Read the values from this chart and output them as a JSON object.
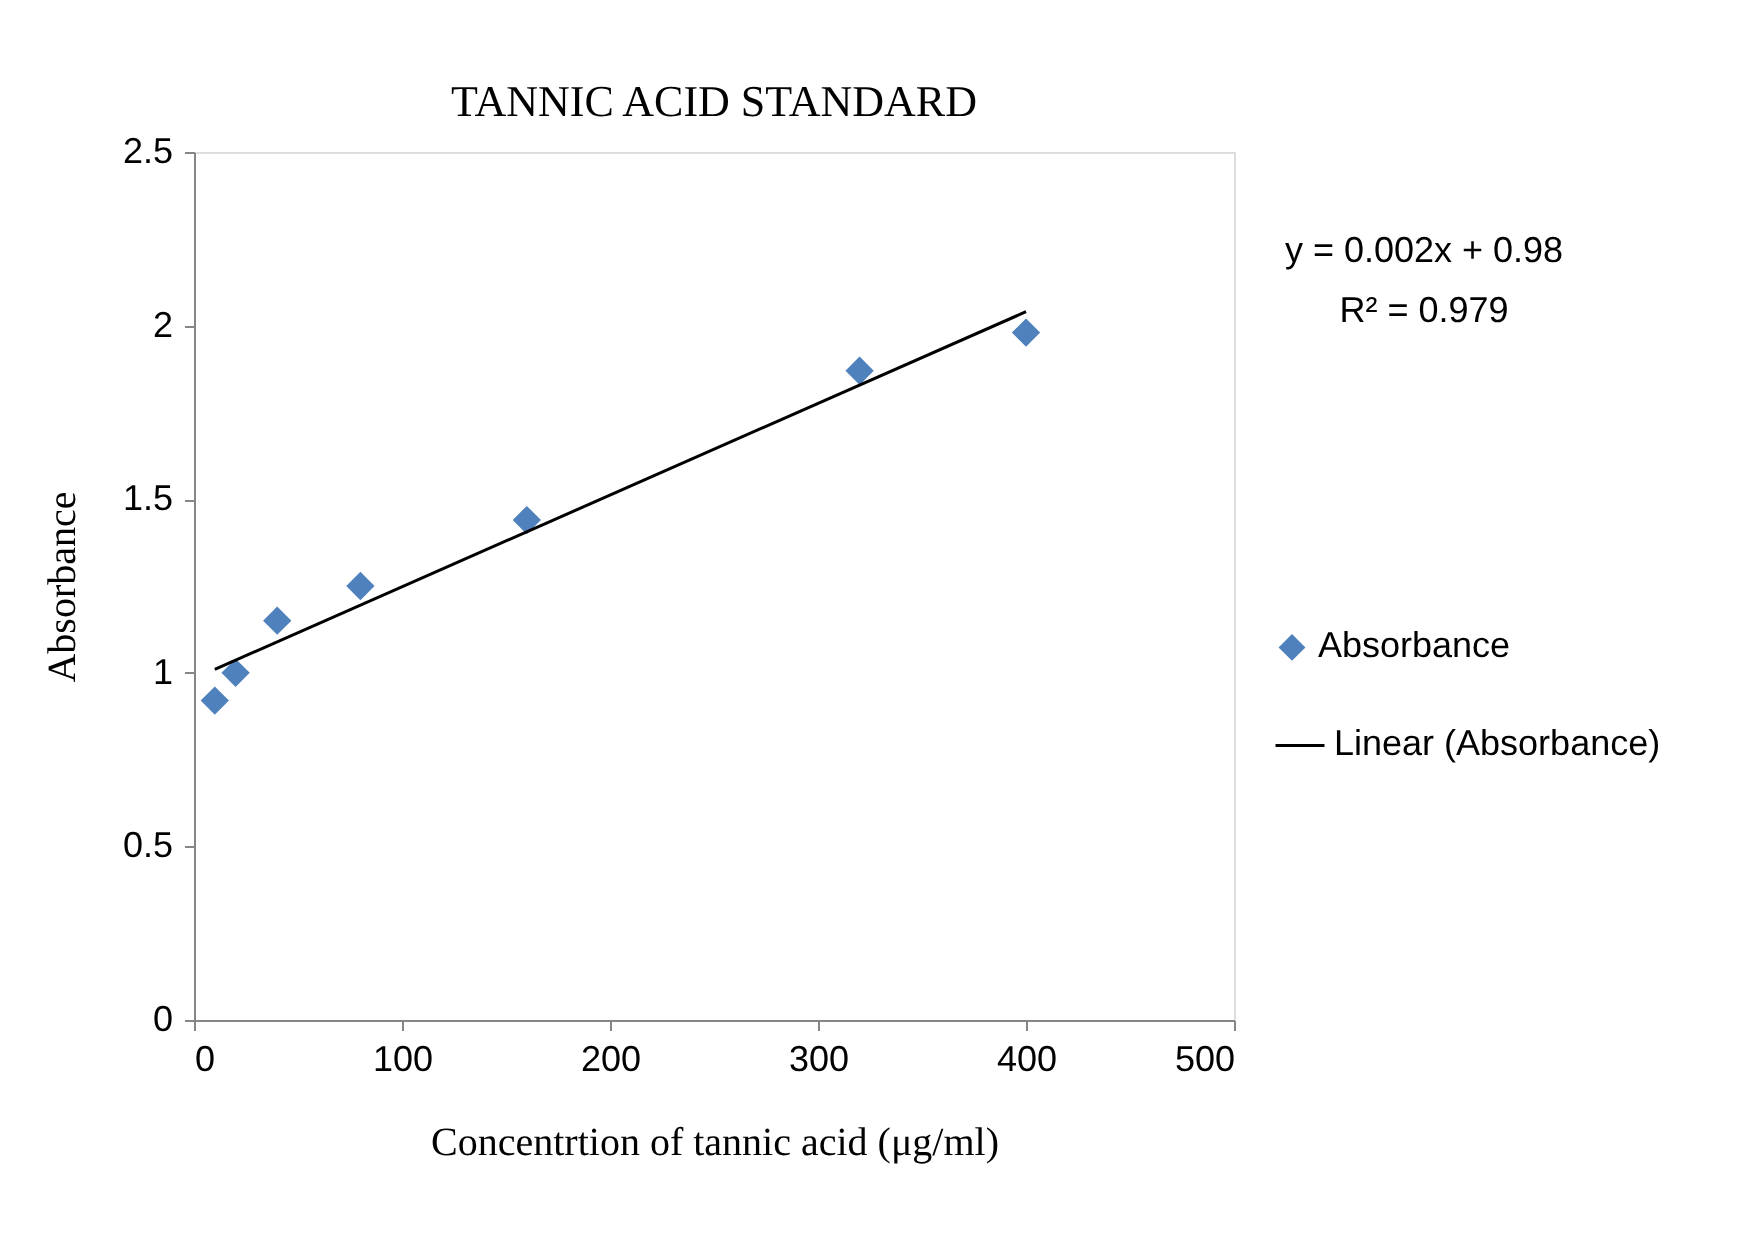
{
  "chart_data": {
    "type": "scatter",
    "title": "TANNIC ACID STANDARD",
    "xlabel": "Concentrtion of tannic acid (μg/ml)",
    "ylabel": "Absorbance",
    "series": [
      {
        "name": "Absorbance",
        "color": "#4f81bd",
        "marker": "diamond",
        "x": [
          10,
          20,
          40,
          80,
          160,
          320,
          400
        ],
        "values": [
          0.92,
          1.0,
          1.15,
          1.25,
          1.44,
          1.87,
          1.98
        ]
      },
      {
        "name": "Linear (Absorbance)",
        "type": "line",
        "color": "#000000",
        "line_style": "solid",
        "x": [
          10,
          400
        ],
        "values": [
          1.01,
          2.04
        ]
      }
    ],
    "xlim": [
      0,
      500
    ],
    "xticks": [
      0,
      100,
      200,
      300,
      400,
      500
    ],
    "ylim": [
      0,
      2.5
    ],
    "yticks": [
      0,
      0.5,
      1,
      1.5,
      2,
      2.5
    ],
    "grid": false,
    "legend": "right",
    "annotations": [
      "y = 0.002x + 0.98",
      "R² = 0.979"
    ]
  }
}
